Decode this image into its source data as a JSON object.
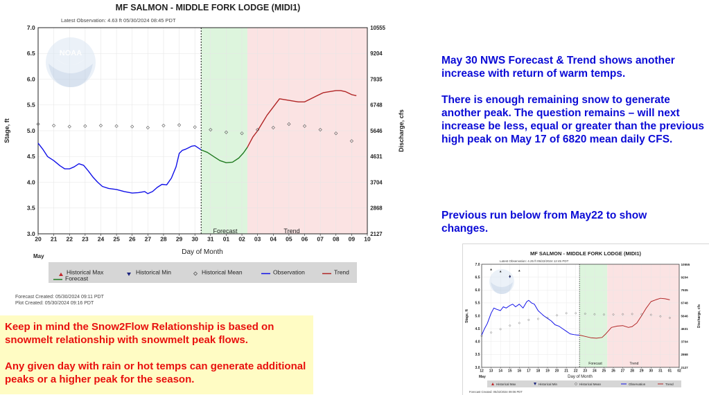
{
  "main_chart": {
    "title": "MF SALMON - MIDDLE FORK LODGE  (MIDI1)",
    "subtitle": "Latest Observation: 4.63 ft 05/30/2024 08:45 PDT",
    "ylabel": "Stage, ft",
    "y2label": "Discharge, cfs",
    "xlabel": "Day of Month",
    "month_label": "May",
    "forecast_label": "Forecast",
    "trend_label": "Trend",
    "legend": [
      "Historical Max",
      "Historical Min",
      "Historical Mean",
      "Observation",
      "Trend",
      "Forecast"
    ],
    "forecast_created": "Forecast Created: 05/30/2024 09:11 PDT",
    "plot_created": "Plot Created: 05/30/2024 09:16 PDT"
  },
  "annotation_top": {
    "p1": "May 30 NWS Forecast & Trend shows another increase with return of warm temps.",
    "p2": "There is enough remaining snow to generate another peak. The question remains – will next increase be less, equal or greater than the previous high peak on May 17 of 6820 mean daily CFS."
  },
  "annotation_mid": "Previous run below from May22 to show changes.",
  "note": {
    "p1": "Keep in mind the Snow2Flow Relationship is based on snowmelt relationship with snowmelt peak flows.",
    "p2": "Any given day with rain or hot temps can generate additional peaks or a higher peak for the season."
  },
  "mini_chart": {
    "title": "MF SALMON - MIDDLE FORK LODGE  (MIDI1)",
    "subtitle": "Latest Observation: 4.25 ft 05/22/2024 12:45 PDT",
    "ylabel": "Stage, ft",
    "y2label": "Discharge, cfs",
    "xlabel": "Day of Month",
    "month_label": "May",
    "forecast_label": "Forecast",
    "trend_label": "Trend",
    "legend": [
      "Historical Max",
      "Historical Min",
      "Historical Mean",
      "Observation",
      "Trend"
    ],
    "forecast_created": "Forecast Created: 05/22/2024 09:06 PDT"
  },
  "colors": {
    "observation": "#1010e8",
    "forecast": "#207a20",
    "trend": "#b02424",
    "mean_marker": "#555555",
    "forecast_shade": "#ddf5dd",
    "trend_shade": "#fbe3e3",
    "annotation_blue": "#0b0bd6",
    "note_red": "#e8100e",
    "note_bg": "#fffcc4"
  },
  "chart_data": [
    {
      "type": "line",
      "title": "MF SALMON - MIDDLE FORK LODGE  (MIDI1)",
      "xlabel": "Day of Month",
      "ylabel": "Stage, ft",
      "y2label": "Discharge, cfs",
      "x_ticks": [
        "20",
        "21",
        "22",
        "23",
        "24",
        "25",
        "26",
        "27",
        "28",
        "29",
        "30",
        "31",
        "01",
        "02",
        "03",
        "04",
        "05",
        "06",
        "07",
        "08",
        "09",
        "10"
      ],
      "ylim": [
        3.0,
        7.0
      ],
      "y_ticks": [
        "3.0",
        "3.5",
        "4.0",
        "4.5",
        "5.0",
        "5.5",
        "6.0",
        "6.5",
        "7.0"
      ],
      "y2_ticks": [
        "2127",
        "2868",
        "3704",
        "4631",
        "5646",
        "6748",
        "7935",
        "9204",
        "10555"
      ],
      "grid": true,
      "legend_position": "bottom",
      "obs_end_x": 10.4,
      "forecast_end_x": 13.35,
      "series": [
        {
          "name": "Observation",
          "x": [
            0,
            0.3,
            0.6,
            1,
            1.4,
            1.7,
            2,
            2.3,
            2.6,
            2.9,
            3.2,
            3.5,
            3.8,
            4.1,
            4.5,
            5,
            5.5,
            6,
            6.4,
            6.8,
            7,
            7.3,
            7.6,
            7.9,
            8.2,
            8.5,
            8.8,
            9,
            9.2,
            9.4,
            9.6,
            9.8,
            10,
            10.2,
            10.4
          ],
          "y": [
            4.76,
            4.64,
            4.5,
            4.42,
            4.32,
            4.26,
            4.26,
            4.3,
            4.36,
            4.33,
            4.22,
            4.1,
            4.0,
            3.92,
            3.88,
            3.86,
            3.82,
            3.79,
            3.8,
            3.82,
            3.78,
            3.82,
            3.9,
            3.96,
            3.95,
            4.08,
            4.3,
            4.56,
            4.62,
            4.64,
            4.67,
            4.7,
            4.71,
            4.67,
            4.63
          ]
        },
        {
          "name": "Forecast",
          "x": [
            10.4,
            10.8,
            11.2,
            11.6,
            12,
            12.4,
            12.8,
            13.1,
            13.35
          ],
          "y": [
            4.63,
            4.58,
            4.5,
            4.42,
            4.38,
            4.39,
            4.47,
            4.57,
            4.68
          ]
        },
        {
          "name": "Trend",
          "x": [
            13.35,
            13.7,
            14,
            14.3,
            14.6,
            15,
            15.4,
            15.8,
            16.2,
            16.6,
            17,
            17.4,
            17.8,
            18.2,
            18.6,
            19,
            19.3,
            19.6,
            20,
            20.3
          ],
          "y": [
            4.68,
            4.88,
            5.0,
            5.15,
            5.3,
            5.46,
            5.62,
            5.6,
            5.58,
            5.56,
            5.56,
            5.62,
            5.68,
            5.74,
            5.76,
            5.78,
            5.78,
            5.76,
            5.7,
            5.68
          ]
        },
        {
          "name": "Historical Mean",
          "x": [
            0,
            1,
            2,
            3,
            4,
            5,
            6,
            7,
            8,
            9,
            10,
            11,
            12,
            13,
            14,
            15,
            16,
            17,
            18,
            19,
            20
          ],
          "y": [
            5.13,
            5.1,
            5.08,
            5.09,
            5.1,
            5.09,
            5.08,
            5.06,
            5.1,
            5.11,
            5.07,
            5.02,
            4.97,
            4.95,
            5.02,
            5.06,
            5.13,
            5.09,
            5.02,
            4.95,
            4.8
          ]
        }
      ]
    },
    {
      "type": "line",
      "title": "MF SALMON - MIDDLE FORK LODGE  (MIDI1)",
      "xlabel": "Day of Month",
      "ylabel": "Stage, ft",
      "y2label": "Discharge, cfs",
      "x_ticks": [
        "12",
        "13",
        "14",
        "15",
        "16",
        "17",
        "18",
        "19",
        "20",
        "21",
        "22",
        "23",
        "24",
        "25",
        "26",
        "27",
        "28",
        "29",
        "30",
        "31",
        "01",
        "02"
      ],
      "ylim": [
        3.0,
        7.0
      ],
      "y_ticks": [
        "3.0",
        "3.5",
        "4.0",
        "4.5",
        "5.0",
        "5.5",
        "6.0",
        "6.5",
        "7.0"
      ],
      "y2_ticks": [
        "2127",
        "2868",
        "3704",
        "4631",
        "5646",
        "6748",
        "7935",
        "9204",
        "10555"
      ],
      "grid": true,
      "legend_position": "bottom",
      "obs_end_x": 10.4,
      "forecast_end_x": 13.35,
      "series": [
        {
          "name": "Observation",
          "x": [
            0,
            0.3,
            0.6,
            1,
            1.3,
            1.6,
            2,
            2.3,
            2.6,
            3,
            3.3,
            3.6,
            4,
            4.4,
            4.8,
            5,
            5.3,
            5.6,
            6,
            6.3,
            6.6,
            7,
            7.4,
            7.8,
            8.2,
            8.6,
            9,
            9.4,
            9.8,
            10.2,
            10.4
          ],
          "y": [
            4.25,
            4.5,
            4.7,
            5.1,
            5.3,
            5.25,
            5.2,
            5.35,
            5.3,
            5.4,
            5.45,
            5.35,
            5.45,
            5.3,
            5.55,
            5.6,
            5.5,
            5.45,
            5.2,
            5.1,
            5.0,
            4.9,
            4.8,
            4.65,
            4.6,
            4.5,
            4.4,
            4.3,
            4.27,
            4.25,
            4.25
          ]
        },
        {
          "name": "Trend",
          "x": [
            10.4,
            11,
            11.6,
            12.2,
            12.8,
            13.2,
            13.8,
            14.4,
            15,
            15.6,
            16,
            16.5,
            17,
            17.5,
            18,
            18.5,
            19,
            19.5,
            20
          ],
          "y": [
            4.25,
            4.2,
            4.15,
            4.13,
            4.16,
            4.3,
            4.55,
            4.6,
            4.62,
            4.55,
            4.58,
            4.72,
            5.0,
            5.3,
            5.55,
            5.62,
            5.68,
            5.66,
            5.62
          ]
        },
        {
          "name": "Historical Max",
          "x": [
            1,
            2,
            3,
            4
          ],
          "y": [
            6.8,
            6.72,
            6.55,
            6.75
          ]
        },
        {
          "name": "Historical Min",
          "x": [
            3
          ],
          "y": [
            6.5
          ]
        },
        {
          "name": "Historical Mean",
          "x": [
            0,
            1,
            2,
            3,
            4,
            5,
            6,
            7,
            8,
            9,
            10,
            11,
            12,
            13,
            14,
            15,
            16,
            17,
            18,
            19,
            20
          ],
          "y": [
            4.22,
            4.35,
            4.48,
            4.62,
            4.72,
            4.84,
            4.88,
            4.92,
            5.02,
            5.1,
            5.1,
            5.08,
            5.06,
            5.05,
            5.05,
            5.06,
            5.07,
            5.06,
            5.04,
            4.98,
            4.92
          ]
        }
      ]
    }
  ]
}
